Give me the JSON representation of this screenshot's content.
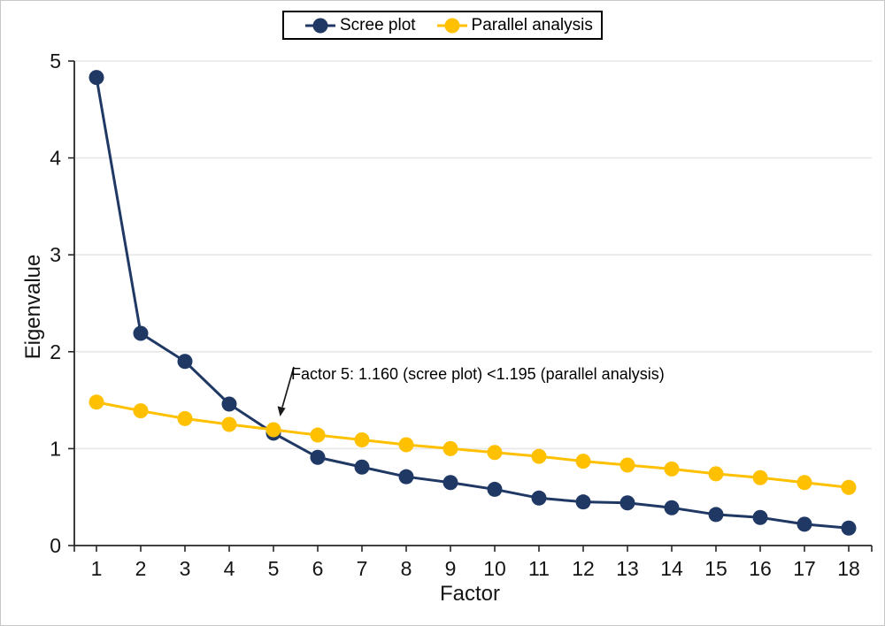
{
  "chart_data": {
    "type": "line",
    "title": "",
    "xlabel": "Factor",
    "ylabel": "Eigenvalue",
    "categories": [
      1,
      2,
      3,
      4,
      5,
      6,
      7,
      8,
      9,
      10,
      11,
      12,
      13,
      14,
      15,
      16,
      17,
      18
    ],
    "ylim": [
      0,
      5
    ],
    "ytick_step": 1,
    "grid": "horizontal-only",
    "legend_position": "top-center",
    "series": [
      {
        "name": "Scree plot",
        "color": "#1F3864",
        "values": [
          4.83,
          2.19,
          1.9,
          1.46,
          1.16,
          0.91,
          0.81,
          0.71,
          0.65,
          0.58,
          0.49,
          0.45,
          0.44,
          0.39,
          0.32,
          0.29,
          0.22,
          0.18
        ]
      },
      {
        "name": "Parallel analysis",
        "color": "#FFC000",
        "values": [
          1.48,
          1.39,
          1.31,
          1.25,
          1.195,
          1.14,
          1.09,
          1.04,
          1.0,
          0.96,
          0.92,
          0.87,
          0.83,
          0.79,
          0.74,
          0.7,
          0.65,
          0.6
        ]
      }
    ],
    "annotation": {
      "text": "Factor 5: 1.160 (scree plot) <1.195 (parallel analysis)",
      "points_to": "Factor 5"
    }
  }
}
